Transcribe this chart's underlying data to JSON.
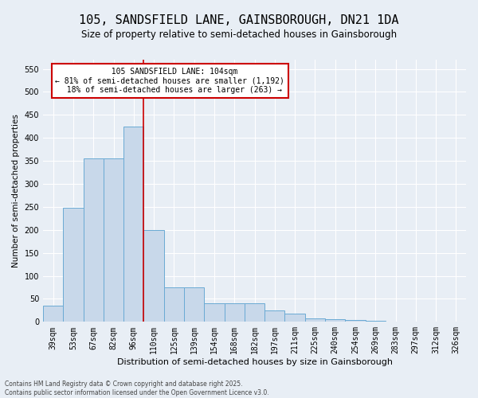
{
  "title": "105, SANDSFIELD LANE, GAINSBOROUGH, DN21 1DA",
  "subtitle": "Size of property relative to semi-detached houses in Gainsborough",
  "xlabel": "Distribution of semi-detached houses by size in Gainsborough",
  "ylabel": "Number of semi-detached properties",
  "footnote": "Contains HM Land Registry data © Crown copyright and database right 2025.\nContains public sector information licensed under the Open Government Licence v3.0.",
  "bins": [
    "39sqm",
    "53sqm",
    "67sqm",
    "82sqm",
    "96sqm",
    "110sqm",
    "125sqm",
    "139sqm",
    "154sqm",
    "168sqm",
    "182sqm",
    "197sqm",
    "211sqm",
    "225sqm",
    "240sqm",
    "254sqm",
    "269sqm",
    "283sqm",
    "297sqm",
    "312sqm",
    "326sqm"
  ],
  "bar_heights": [
    35,
    248,
    355,
    355,
    425,
    200,
    75,
    75,
    40,
    40,
    40,
    25,
    18,
    8,
    5,
    4,
    2,
    1,
    1,
    0,
    1
  ],
  "bar_color": "#c8d8ea",
  "bar_edge_color": "#6aaad4",
  "vline_color": "#cc0000",
  "property_label": "105 SANDSFIELD LANE: 104sqm",
  "pct_smaller": "81%",
  "n_smaller": "1,192",
  "pct_larger": "18%",
  "n_larger": "263",
  "annotation_box_color": "#cc0000",
  "ylim": [
    0,
    570
  ],
  "yticks": [
    0,
    50,
    100,
    150,
    200,
    250,
    300,
    350,
    400,
    450,
    500,
    550
  ],
  "background_color": "#e8eef5",
  "grid_color": "#ffffff",
  "title_fontsize": 11,
  "subtitle_fontsize": 8.5,
  "xlabel_fontsize": 8,
  "ylabel_fontsize": 7.5,
  "tick_fontsize": 7,
  "annot_fontsize": 7,
  "footnote_fontsize": 5.5
}
